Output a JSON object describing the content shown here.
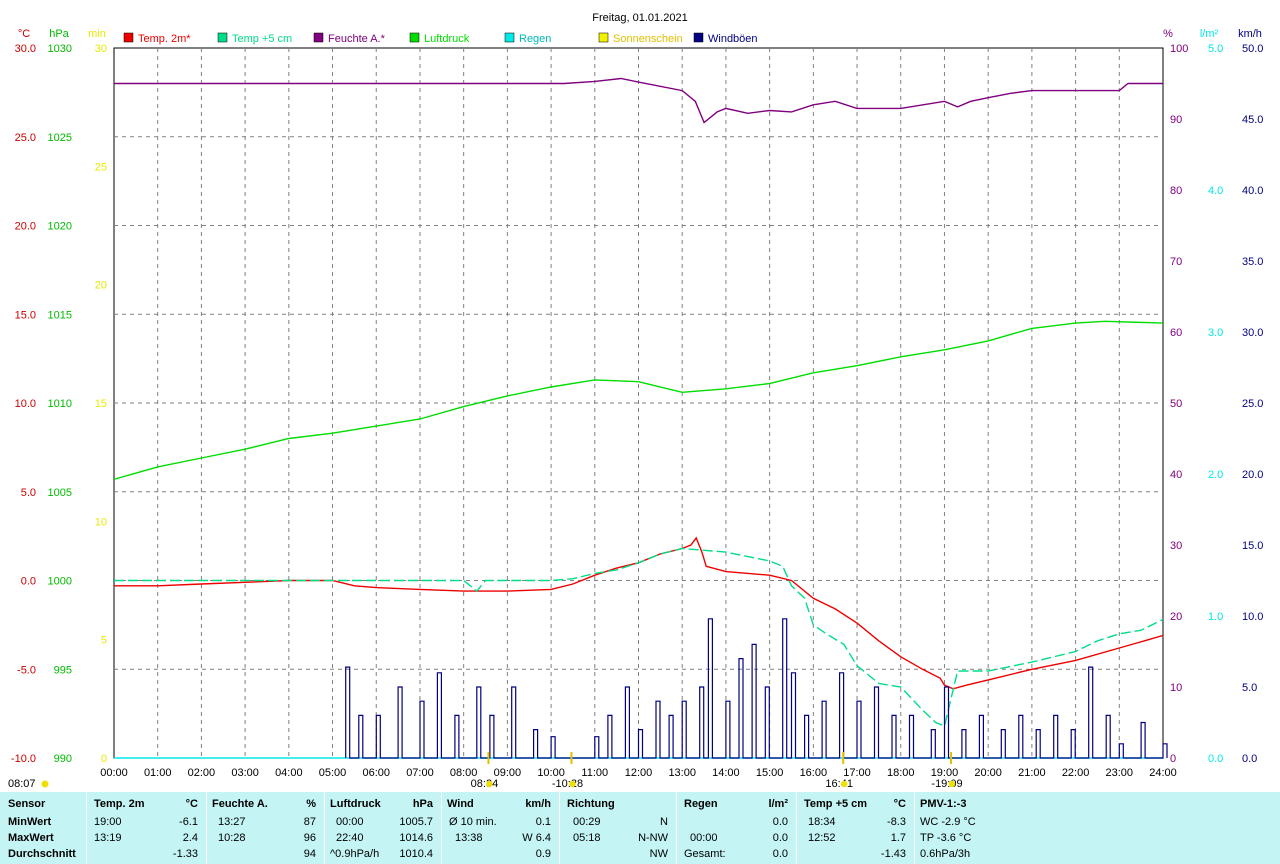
{
  "chart_data": {
    "type": "line",
    "title": "Freitag, 01.01.2021",
    "x_ticks": [
      "00:00",
      "01:00",
      "02:00",
      "03:00",
      "04:00",
      "05:00",
      "06:00",
      "07:00",
      "08:00",
      "09:00",
      "10:00",
      "11:00",
      "12:00",
      "13:00",
      "14:00",
      "15:00",
      "16:00",
      "17:00",
      "18:00",
      "19:00",
      "20:00",
      "21:00",
      "22:00",
      "23:00",
      "24:00"
    ],
    "xlim_hours": [
      0,
      24
    ],
    "axes": {
      "temp": {
        "unit": "°C",
        "ylim": [
          -10,
          30
        ],
        "ticks": [
          "30.0",
          "25.0",
          "20.0",
          "15.0",
          "10.0",
          "5.0",
          "0.0",
          "-5.0",
          "-10.0"
        ],
        "color": "#cc0000"
      },
      "pressure": {
        "unit": "hPa",
        "ylim": [
          990,
          1030
        ],
        "ticks": [
          "1030",
          "1025",
          "1020",
          "1015",
          "1010",
          "1005",
          "1000",
          "995",
          "990"
        ],
        "color": "#00bb00"
      },
      "sunshine": {
        "unit": "min",
        "ylim": [
          0,
          30
        ],
        "ticks": [
          "30",
          "25",
          "20",
          "15",
          "10",
          "5",
          "0"
        ],
        "color": "#e8e800"
      },
      "humidity": {
        "unit": "%",
        "ylim": [
          0,
          100
        ],
        "ticks": [
          "100",
          "90",
          "80",
          "70",
          "60",
          "50",
          "40",
          "30",
          "20",
          "10",
          "0"
        ],
        "color": "#800080"
      },
      "rain": {
        "unit": "l/m²",
        "ylim": [
          0,
          5
        ],
        "ticks": [
          "5.0",
          "4.0",
          "3.0",
          "2.0",
          "1.0",
          "0.0"
        ],
        "color": "#00e8e8"
      },
      "wind": {
        "unit": "km/h",
        "ylim": [
          0,
          50
        ],
        "ticks": [
          "50.0",
          "45.0",
          "40.0",
          "35.0",
          "30.0",
          "25.0",
          "20.0",
          "15.0",
          "10.0",
          "5.0",
          "0.0"
        ],
        "color": "#000080"
      }
    },
    "legend": [
      {
        "name": "Temp. 2m*",
        "color": "#ee0000"
      },
      {
        "name": "Temp +5 cm",
        "color": "#00dd88"
      },
      {
        "name": "Feuchte A.*",
        "color": "#800080"
      },
      {
        "name": "Luftdruck",
        "color": "#00dd00"
      },
      {
        "name": "Regen",
        "color": "#00e8e8"
      },
      {
        "name": "Sonnenschein",
        "color": "#f0f000"
      },
      {
        "name": "Windböen",
        "color": "#000080"
      }
    ],
    "series": [
      {
        "name": "Temp. 2m*",
        "axis": "temp",
        "color": "#ee0000",
        "points": [
          [
            0,
            -0.3
          ],
          [
            1,
            -0.3
          ],
          [
            2,
            -0.2
          ],
          [
            3,
            -0.1
          ],
          [
            4,
            0
          ],
          [
            5,
            0
          ],
          [
            5.5,
            -0.3
          ],
          [
            6,
            -0.4
          ],
          [
            7,
            -0.5
          ],
          [
            8,
            -0.6
          ],
          [
            8.4,
            -0.6
          ],
          [
            9,
            -0.6
          ],
          [
            10,
            -0.5
          ],
          [
            10.5,
            -0.2
          ],
          [
            11,
            0.3
          ],
          [
            11.5,
            0.7
          ],
          [
            12,
            1
          ],
          [
            12.5,
            1.5
          ],
          [
            13,
            1.8
          ],
          [
            13.2,
            2
          ],
          [
            13.32,
            2.4
          ],
          [
            13.45,
            1.6
          ],
          [
            13.55,
            0.8
          ],
          [
            14,
            0.5
          ],
          [
            15,
            0.3
          ],
          [
            15.5,
            0
          ],
          [
            16,
            -1
          ],
          [
            16.5,
            -1.6
          ],
          [
            17,
            -2.4
          ],
          [
            17.5,
            -3.4
          ],
          [
            18,
            -4.3
          ],
          [
            18.5,
            -5
          ],
          [
            18.9,
            -5.5
          ],
          [
            19,
            -5.9
          ],
          [
            19.2,
            -6.1
          ],
          [
            19.5,
            -5.9
          ],
          [
            20,
            -5.6
          ],
          [
            21,
            -5
          ],
          [
            22,
            -4.5
          ],
          [
            23,
            -3.8
          ],
          [
            24,
            -3.1
          ]
        ]
      },
      {
        "name": "Temp +5 cm",
        "axis": "temp",
        "color": "#00dd88",
        "dashed": true,
        "points": [
          [
            0,
            0
          ],
          [
            2,
            0
          ],
          [
            4,
            0
          ],
          [
            5,
            0
          ],
          [
            7,
            0
          ],
          [
            8,
            0
          ],
          [
            8.3,
            -0.6
          ],
          [
            8.5,
            0
          ],
          [
            10,
            0
          ],
          [
            10.5,
            0.1
          ],
          [
            11,
            0.4
          ],
          [
            11.5,
            0.6
          ],
          [
            12,
            1
          ],
          [
            12.5,
            1.5
          ],
          [
            13,
            1.8
          ],
          [
            14,
            1.6
          ],
          [
            15,
            1.1
          ],
          [
            15.3,
            0.8
          ],
          [
            15.5,
            -0.3
          ],
          [
            15.8,
            -1
          ],
          [
            16,
            -2.5
          ],
          [
            16.3,
            -3
          ],
          [
            16.7,
            -3.6
          ],
          [
            17,
            -4.8
          ],
          [
            17.5,
            -5.8
          ],
          [
            18,
            -6
          ],
          [
            18.5,
            -7.3
          ],
          [
            18.8,
            -8
          ],
          [
            19,
            -8.2
          ],
          [
            19.3,
            -5.1
          ],
          [
            20,
            -5.1
          ],
          [
            21,
            -4.6
          ],
          [
            22,
            -4
          ],
          [
            22.5,
            -3.4
          ],
          [
            23,
            -3
          ],
          [
            23.5,
            -2.8
          ],
          [
            24,
            -2.2
          ]
        ]
      },
      {
        "name": "Feuchte A.*",
        "axis": "humidity",
        "color": "#800080",
        "points": [
          [
            0,
            95
          ],
          [
            1,
            95
          ],
          [
            5,
            95
          ],
          [
            10.3,
            95
          ],
          [
            11,
            95.3
          ],
          [
            11.6,
            95.7
          ],
          [
            12,
            95.2
          ],
          [
            13,
            94
          ],
          [
            13.3,
            92.5
          ],
          [
            13.5,
            89.5
          ],
          [
            13.8,
            91
          ],
          [
            14,
            91.5
          ],
          [
            14.5,
            90.8
          ],
          [
            15,
            91.2
          ],
          [
            15.5,
            91
          ],
          [
            16,
            92
          ],
          [
            16.5,
            92.5
          ],
          [
            17,
            91.5
          ],
          [
            18,
            91.5
          ],
          [
            19,
            92.5
          ],
          [
            19.3,
            91.7
          ],
          [
            19.6,
            92.5
          ],
          [
            20,
            93
          ],
          [
            20.5,
            93.6
          ],
          [
            21,
            94
          ],
          [
            22,
            94
          ],
          [
            23,
            94
          ],
          [
            23.2,
            95
          ],
          [
            24,
            95
          ]
        ]
      },
      {
        "name": "Luftdruck",
        "axis": "pressure",
        "color": "#00dd00",
        "points": [
          [
            0,
            1005.7
          ],
          [
            1,
            1006.4
          ],
          [
            2,
            1006.9
          ],
          [
            3,
            1007.4
          ],
          [
            4,
            1008
          ],
          [
            5,
            1008.3
          ],
          [
            6,
            1008.7
          ],
          [
            7,
            1009.1
          ],
          [
            8,
            1009.8
          ],
          [
            9,
            1010.4
          ],
          [
            10,
            1010.9
          ],
          [
            11,
            1011.3
          ],
          [
            12,
            1011.2
          ],
          [
            13,
            1010.6
          ],
          [
            14,
            1010.8
          ],
          [
            15,
            1011.1
          ],
          [
            16,
            1011.7
          ],
          [
            17,
            1012.1
          ],
          [
            18,
            1012.6
          ],
          [
            19,
            1013
          ],
          [
            20,
            1013.5
          ],
          [
            21,
            1014.2
          ],
          [
            22,
            1014.5
          ],
          [
            22.67,
            1014.6
          ],
          [
            24,
            1014.5
          ]
        ]
      },
      {
        "name": "Regen",
        "axis": "rain",
        "color": "#00e8e8",
        "points": [
          [
            0,
            0
          ],
          [
            24,
            0
          ]
        ]
      },
      {
        "name": "Windböen",
        "axis": "wind",
        "color": "#000080",
        "type": "bars",
        "points": [
          [
            5.3,
            6.4
          ],
          [
            5.6,
            3
          ],
          [
            6,
            3
          ],
          [
            6.5,
            5
          ],
          [
            7,
            4
          ],
          [
            7.4,
            6
          ],
          [
            7.8,
            3
          ],
          [
            8.3,
            5
          ],
          [
            8.6,
            3
          ],
          [
            9.1,
            5
          ],
          [
            9.6,
            2
          ],
          [
            10,
            1.5
          ],
          [
            11,
            1.5
          ],
          [
            11.3,
            3
          ],
          [
            11.7,
            5
          ],
          [
            12,
            2
          ],
          [
            12.4,
            4
          ],
          [
            12.7,
            3
          ],
          [
            13,
            4
          ],
          [
            13.4,
            5
          ],
          [
            13.6,
            9.8
          ],
          [
            14,
            4
          ],
          [
            14.3,
            7
          ],
          [
            14.6,
            8
          ],
          [
            14.9,
            5
          ],
          [
            15.3,
            9.8
          ],
          [
            15.5,
            6
          ],
          [
            15.8,
            3
          ],
          [
            16.2,
            4
          ],
          [
            16.6,
            6
          ],
          [
            17,
            4
          ],
          [
            17.4,
            5
          ],
          [
            17.8,
            3
          ],
          [
            18.2,
            3
          ],
          [
            18.7,
            2
          ],
          [
            19,
            5
          ],
          [
            19.4,
            2
          ],
          [
            19.8,
            3
          ],
          [
            20.3,
            2
          ],
          [
            20.7,
            3
          ],
          [
            21.1,
            2
          ],
          [
            21.5,
            3
          ],
          [
            21.9,
            2
          ],
          [
            22.3,
            6.4
          ],
          [
            22.7,
            3
          ],
          [
            23,
            1
          ],
          [
            23.5,
            2.5
          ],
          [
            24,
            1
          ]
        ]
      }
    ],
    "sun_markers": [
      {
        "label": "08:07",
        "hour": 8.1167
      },
      {
        "label": "08:34",
        "hour": 8.5667
      },
      {
        "label": "-10:28",
        "hour": 10.4667
      },
      {
        "label": "16:41",
        "hour": 16.6833
      },
      {
        "label": "-19:09",
        "hour": 19.15
      }
    ]
  },
  "footer": {
    "columns": [
      {
        "head": [
          "Sensor",
          ""
        ],
        "rows": [
          [
            "MinWert",
            ""
          ],
          [
            "MaxWert",
            ""
          ],
          [
            "Durchschnitt",
            ""
          ]
        ]
      },
      {
        "head": [
          "Temp. 2m",
          "°C"
        ],
        "rows": [
          [
            "19:00",
            "-6.1"
          ],
          [
            "13:19",
            "2.4"
          ],
          [
            "",
            "-1.33"
          ]
        ]
      },
      {
        "head": [
          "Feuchte A.",
          "%"
        ],
        "rows": [
          [
            "13:27",
            "87"
          ],
          [
            "10:28",
            "96"
          ],
          [
            "",
            "94"
          ]
        ]
      },
      {
        "head": [
          "Luftdruck",
          "hPa"
        ],
        "rows": [
          [
            "00:00",
            "1005.7"
          ],
          [
            "22:40",
            "1014.6"
          ],
          [
            "^0.9hPa/h",
            "1010.4"
          ]
        ]
      },
      {
        "head": [
          "Wind",
          "km/h"
        ],
        "rows": [
          [
            "Ø 10 min.",
            "0.1"
          ],
          [
            "13:38",
            "W 6.4"
          ],
          [
            "",
            "0.9"
          ]
        ]
      },
      {
        "head": [
          "Richtung",
          ""
        ],
        "rows": [
          [
            "00:29",
            "N"
          ],
          [
            "05:18",
            "N-NW"
          ],
          [
            "",
            "NW"
          ]
        ]
      },
      {
        "head": [
          "Regen",
          "l/m²"
        ],
        "rows": [
          [
            "",
            "0.0"
          ],
          [
            "00:00",
            "0.0"
          ],
          [
            "Gesamt:",
            "0.0"
          ]
        ]
      },
      {
        "head": [
          "Temp +5 cm",
          "°C"
        ],
        "rows": [
          [
            "18:34",
            "-8.3"
          ],
          [
            "12:52",
            "1.7"
          ],
          [
            "",
            "-1.43"
          ]
        ]
      },
      {
        "head": [
          "PMV-1:-3",
          ""
        ],
        "rows": [
          [
            "WC -2.9 °C",
            ""
          ],
          [
            "TP -3.6 °C",
            ""
          ],
          [
            "0.6hPa/3h",
            ""
          ]
        ]
      }
    ]
  }
}
